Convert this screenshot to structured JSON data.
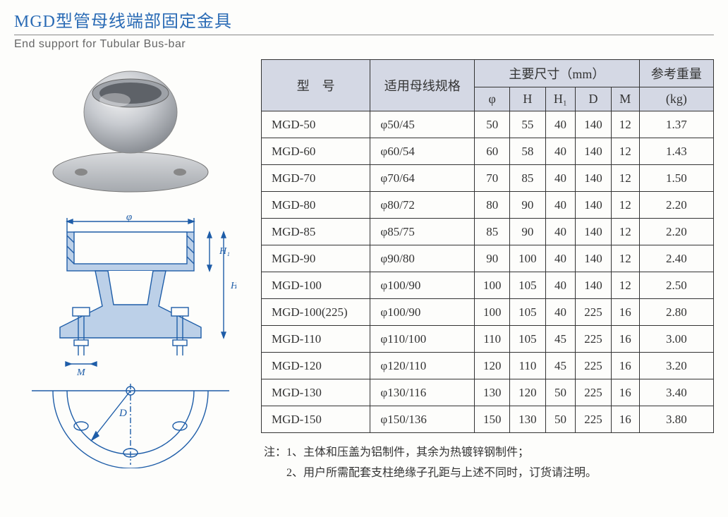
{
  "title": {
    "cn": "MGD型管母线端部固定金具",
    "en": "End support for Tubular Bus-bar"
  },
  "colors": {
    "title_color": "#2a6bb5",
    "header_bg": "#d4d8e4",
    "border": "#333333",
    "text": "#333333",
    "subtitle": "#666666"
  },
  "table": {
    "header": {
      "model": "型　号",
      "spec": "适用母线规格",
      "dims_group": "主要尺寸（mm）",
      "weight": "参考重量",
      "weight_unit": "(kg)",
      "phi": "φ",
      "H": "H",
      "H1": "H₁",
      "D": "D",
      "M": "M"
    },
    "rows": [
      {
        "model": "MGD-50",
        "spec": "φ50/45",
        "phi": "50",
        "H": "55",
        "H1": "40",
        "D": "140",
        "M": "12",
        "kg": "1.37"
      },
      {
        "model": "MGD-60",
        "spec": "φ60/54",
        "phi": "60",
        "H": "58",
        "H1": "40",
        "D": "140",
        "M": "12",
        "kg": "1.43"
      },
      {
        "model": "MGD-70",
        "spec": "φ70/64",
        "phi": "70",
        "H": "85",
        "H1": "40",
        "D": "140",
        "M": "12",
        "kg": "1.50"
      },
      {
        "model": "MGD-80",
        "spec": "φ80/72",
        "phi": "80",
        "H": "90",
        "H1": "40",
        "D": "140",
        "M": "12",
        "kg": "2.20"
      },
      {
        "model": "MGD-85",
        "spec": "φ85/75",
        "phi": "85",
        "H": "90",
        "H1": "40",
        "D": "140",
        "M": "12",
        "kg": "2.20"
      },
      {
        "model": "MGD-90",
        "spec": "φ90/80",
        "phi": "90",
        "H": "100",
        "H1": "40",
        "D": "140",
        "M": "12",
        "kg": "2.40"
      },
      {
        "model": "MGD-100",
        "spec": "φ100/90",
        "phi": "100",
        "H": "105",
        "H1": "40",
        "D": "140",
        "M": "12",
        "kg": "2.50"
      },
      {
        "model": "MGD-100(225)",
        "spec": "φ100/90",
        "phi": "100",
        "H": "105",
        "H1": "40",
        "D": "225",
        "M": "16",
        "kg": "2.80"
      },
      {
        "model": "MGD-110",
        "spec": "φ110/100",
        "phi": "110",
        "H": "105",
        "H1": "45",
        "D": "225",
        "M": "16",
        "kg": "3.00"
      },
      {
        "model": "MGD-120",
        "spec": "φ120/110",
        "phi": "120",
        "H": "110",
        "H1": "45",
        "D": "225",
        "M": "16",
        "kg": "3.20"
      },
      {
        "model": "MGD-130",
        "spec": "φ130/116",
        "phi": "130",
        "H": "120",
        "H1": "50",
        "D": "225",
        "M": "16",
        "kg": "3.40"
      },
      {
        "model": "MGD-150",
        "spec": "φ150/136",
        "phi": "150",
        "H": "130",
        "H1": "50",
        "D": "225",
        "M": "16",
        "kg": "3.80"
      }
    ]
  },
  "notes": {
    "prefix": "注：",
    "items": [
      "1、主体和压盖为铝制件，其余为热镀锌钢制件；",
      "2、用户所需配套支柱绝缘子孔距与上述不同时，订货请注明。"
    ]
  },
  "diagram_labels": {
    "phi": "φ",
    "H": "H",
    "H1": "H₁",
    "M": "M",
    "D": "D"
  }
}
